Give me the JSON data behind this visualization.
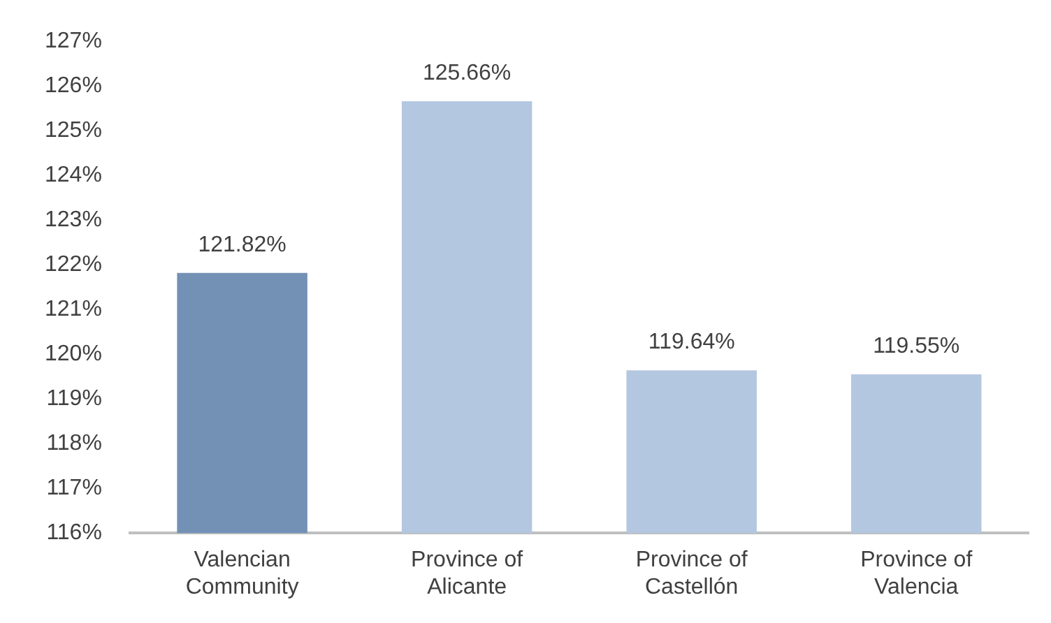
{
  "chart_data": {
    "type": "bar",
    "categories": [
      "Valencian Community",
      "Province of Alicante",
      "Province of Castellón",
      "Province of Valencia"
    ],
    "values": [
      121.82,
      125.66,
      119.64,
      119.55
    ],
    "colors": [
      "#7391b5",
      "#b4c7e1",
      "#b4c7e1",
      "#b4c7e1"
    ],
    "value_labels": [
      "121.82%",
      "125.66%",
      "119.64%",
      "119.55%"
    ],
    "ylim": [
      116,
      127
    ],
    "yticks": [
      {
        "value": 116,
        "label": "116%"
      },
      {
        "value": 117,
        "label": "117%"
      },
      {
        "value": 118,
        "label": "118%"
      },
      {
        "value": 119,
        "label": "119%"
      },
      {
        "value": 120,
        "label": "120%"
      },
      {
        "value": 121,
        "label": "121%"
      },
      {
        "value": 122,
        "label": "122%"
      },
      {
        "value": 123,
        "label": "123%"
      },
      {
        "value": 124,
        "label": "124%"
      },
      {
        "value": 125,
        "label": "125%"
      },
      {
        "value": 126,
        "label": "126%"
      },
      {
        "value": 127,
        "label": "127%"
      }
    ],
    "grid": false,
    "legend": false
  }
}
